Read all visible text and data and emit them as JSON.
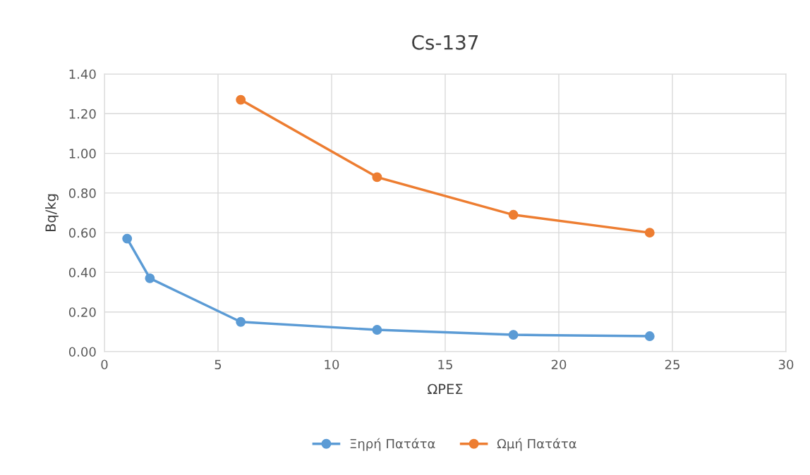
{
  "chart_data": {
    "type": "line",
    "title": "Cs-137",
    "xlabel": "ΩΡΕΣ",
    "ylabel": "Bq/kg",
    "series": [
      {
        "name": "Ξηρή Πατάτα",
        "color": "#5b9bd5",
        "x": [
          1,
          2,
          6,
          12,
          18,
          24
        ],
        "values": [
          0.57,
          0.37,
          0.15,
          0.11,
          0.085,
          0.078
        ]
      },
      {
        "name": "Ωμή Πατάτα",
        "color": "#ed7d31",
        "x": [
          6,
          12,
          18,
          24
        ],
        "values": [
          1.27,
          0.88,
          0.69,
          0.6
        ]
      }
    ],
    "xlim": [
      0,
      30
    ],
    "xticks": [
      0,
      5,
      10,
      15,
      20,
      25,
      30
    ],
    "ylim": [
      0,
      1.4
    ],
    "yticks": [
      {
        "value": 0,
        "label": "0.00"
      },
      {
        "value": 0.2,
        "label": "0.20"
      },
      {
        "value": 0.4,
        "label": "0.40"
      },
      {
        "value": 0.6,
        "label": "0.60"
      },
      {
        "value": 0.8,
        "label": "0.80"
      },
      {
        "value": 1.0,
        "label": "1.00"
      },
      {
        "value": 1.2,
        "label": "1.20"
      },
      {
        "value": 1.4,
        "label": "1.40"
      }
    ],
    "grid": true,
    "legend": "bottom",
    "marker": "circle",
    "line_style": "solid"
  }
}
